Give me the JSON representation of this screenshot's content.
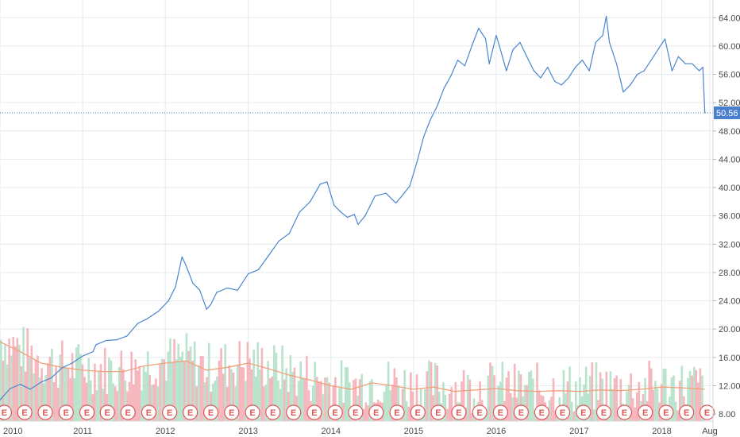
{
  "colors": {
    "price_line": "#4a86cf",
    "grid": "#e6e9ee",
    "axis_text": "#4a4a4a",
    "volume_up": "#b9e3cc",
    "volume_down": "#f6b6bd",
    "volume_ma": "#f0a27a",
    "event_stroke": "#e05555",
    "event_stroke_alt": "#4a86cf",
    "last_price_bg": "#4a7fcf"
  },
  "chart_data": {
    "type": "line",
    "title": "",
    "xlabel": "",
    "ylabel": "",
    "ylim": [
      7.0,
      66.5
    ],
    "y_ticks": [
      "8.00",
      "12.00",
      "16.00",
      "20.00",
      "24.00",
      "28.00",
      "32.00",
      "36.00",
      "40.00",
      "44.00",
      "48.00",
      "52.00",
      "56.00",
      "60.00",
      "64.00"
    ],
    "x_ticks": [
      {
        "date": "2010-01-01",
        "label": "2010"
      },
      {
        "date": "2011-01-01",
        "label": "2011"
      },
      {
        "date": "2012-01-01",
        "label": "2012"
      },
      {
        "date": "2013-01-01",
        "label": "2013"
      },
      {
        "date": "2014-01-01",
        "label": "2014"
      },
      {
        "date": "2015-01-01",
        "label": "2015"
      },
      {
        "date": "2016-01-01",
        "label": "2016"
      },
      {
        "date": "2017-01-01",
        "label": "2017"
      },
      {
        "date": "2018-01-01",
        "label": "2018"
      },
      {
        "date": "2018-08-01",
        "label": "Aug"
      }
    ],
    "x_domain": [
      "2010-01-01",
      "2018-08-15"
    ],
    "last_price": "50.56",
    "series": [
      {
        "points": [
          [
            "2010-01-01",
            10.0
          ],
          [
            "2010-02-15",
            11.6
          ],
          [
            "2010-04-01",
            12.2
          ],
          [
            "2010-05-15",
            11.5
          ],
          [
            "2010-07-01",
            12.5
          ],
          [
            "2010-08-15",
            13.1
          ],
          [
            "2010-10-01",
            14.5
          ],
          [
            "2010-11-15",
            15.2
          ],
          [
            "2011-01-01",
            16.2
          ],
          [
            "2011-02-15",
            16.8
          ],
          [
            "2011-03-01",
            17.8
          ],
          [
            "2011-04-15",
            18.4
          ],
          [
            "2011-06-01",
            18.5
          ],
          [
            "2011-07-15",
            19.0
          ],
          [
            "2011-09-01",
            20.8
          ],
          [
            "2011-10-15",
            21.5
          ],
          [
            "2011-12-01",
            22.5
          ],
          [
            "2012-01-15",
            24.0
          ],
          [
            "2012-02-15",
            26.0
          ],
          [
            "2012-03-15",
            30.2
          ],
          [
            "2012-04-01",
            29.0
          ],
          [
            "2012-05-01",
            26.5
          ],
          [
            "2012-06-01",
            25.5
          ],
          [
            "2012-07-01",
            22.8
          ],
          [
            "2012-07-20",
            23.5
          ],
          [
            "2012-08-15",
            25.2
          ],
          [
            "2012-10-01",
            25.8
          ],
          [
            "2012-11-15",
            25.5
          ],
          [
            "2013-01-01",
            27.8
          ],
          [
            "2013-02-15",
            28.4
          ],
          [
            "2013-04-01",
            30.4
          ],
          [
            "2013-05-15",
            32.4
          ],
          [
            "2013-07-01",
            33.5
          ],
          [
            "2013-08-15",
            36.5
          ],
          [
            "2013-10-01",
            38.0
          ],
          [
            "2013-11-15",
            40.5
          ],
          [
            "2013-12-15",
            40.8
          ],
          [
            "2014-01-15",
            37.5
          ],
          [
            "2014-02-15",
            36.5
          ],
          [
            "2014-03-15",
            35.8
          ],
          [
            "2014-04-15",
            36.2
          ],
          [
            "2014-05-01",
            34.8
          ],
          [
            "2014-06-01",
            36.0
          ],
          [
            "2014-07-15",
            38.8
          ],
          [
            "2014-09-01",
            39.2
          ],
          [
            "2014-10-15",
            37.8
          ],
          [
            "2014-11-15",
            39.0
          ],
          [
            "2014-12-15",
            40.2
          ],
          [
            "2015-01-15",
            43.5
          ],
          [
            "2015-02-15",
            47.2
          ],
          [
            "2015-03-15",
            49.5
          ],
          [
            "2015-04-15",
            51.5
          ],
          [
            "2015-05-15",
            54.0
          ],
          [
            "2015-06-15",
            55.8
          ],
          [
            "2015-07-15",
            58.0
          ],
          [
            "2015-08-15",
            57.2
          ],
          [
            "2015-09-15",
            60.0
          ],
          [
            "2015-10-15",
            62.5
          ],
          [
            "2015-11-15",
            61.0
          ],
          [
            "2015-12-01",
            57.5
          ],
          [
            "2016-01-01",
            61.5
          ],
          [
            "2016-01-15",
            60.0
          ],
          [
            "2016-02-15",
            56.5
          ],
          [
            "2016-03-15",
            59.5
          ],
          [
            "2016-04-15",
            60.5
          ],
          [
            "2016-05-15",
            58.5
          ],
          [
            "2016-06-15",
            56.5
          ],
          [
            "2016-07-15",
            55.5
          ],
          [
            "2016-08-15",
            57.0
          ],
          [
            "2016-09-15",
            55.0
          ],
          [
            "2016-10-15",
            54.5
          ],
          [
            "2016-11-15",
            55.5
          ],
          [
            "2016-12-15",
            57.0
          ],
          [
            "2017-01-15",
            58.0
          ],
          [
            "2017-02-15",
            56.5
          ],
          [
            "2017-03-15",
            60.5
          ],
          [
            "2017-04-15",
            61.5
          ],
          [
            "2017-05-01",
            64.2
          ],
          [
            "2017-05-15",
            60.5
          ],
          [
            "2017-06-15",
            57.5
          ],
          [
            "2017-07-15",
            53.5
          ],
          [
            "2017-08-15",
            54.5
          ],
          [
            "2017-09-15",
            56.0
          ],
          [
            "2017-10-15",
            56.5
          ],
          [
            "2017-11-15",
            58.0
          ],
          [
            "2017-12-15",
            59.5
          ],
          [
            "2018-01-15",
            61.0
          ],
          [
            "2018-02-15",
            56.5
          ],
          [
            "2018-03-15",
            58.5
          ],
          [
            "2018-04-15",
            57.5
          ],
          [
            "2018-05-15",
            57.5
          ],
          [
            "2018-06-15",
            56.5
          ],
          [
            "2018-07-01",
            57.0
          ],
          [
            "2018-07-10",
            50.56
          ]
        ]
      }
    ],
    "volume": {
      "axis_label_coverage": "bars share price axis region below ~20.00",
      "moving_average": [
        [
          "2010-01-01",
          18.2
        ],
        [
          "2010-04-01",
          16.8
        ],
        [
          "2010-07-01",
          15.2
        ],
        [
          "2010-10-01",
          14.6
        ],
        [
          "2011-01-01",
          14.2
        ],
        [
          "2011-04-01",
          14.0
        ],
        [
          "2011-07-01",
          14.0
        ],
        [
          "2011-10-01",
          14.8
        ],
        [
          "2012-01-01",
          15.2
        ],
        [
          "2012-04-01",
          15.5
        ],
        [
          "2012-07-01",
          14.2
        ],
        [
          "2012-10-01",
          14.6
        ],
        [
          "2013-01-01",
          15.2
        ],
        [
          "2013-04-01",
          14.4
        ],
        [
          "2013-07-01",
          13.5
        ],
        [
          "2013-10-01",
          12.8
        ],
        [
          "2014-01-01",
          12.0
        ],
        [
          "2014-04-01",
          11.5
        ],
        [
          "2014-07-01",
          12.4
        ],
        [
          "2014-10-01",
          12.0
        ],
        [
          "2015-01-01",
          11.5
        ],
        [
          "2015-04-01",
          11.8
        ],
        [
          "2015-07-01",
          11.2
        ],
        [
          "2015-10-01",
          11.4
        ],
        [
          "2016-01-01",
          11.6
        ],
        [
          "2016-04-01",
          11.3
        ],
        [
          "2016-07-01",
          11.2
        ],
        [
          "2016-10-01",
          11.3
        ],
        [
          "2017-01-01",
          11.2
        ],
        [
          "2017-04-01",
          11.4
        ],
        [
          "2017-07-01",
          11.3
        ],
        [
          "2017-10-01",
          11.5
        ],
        [
          "2018-01-01",
          11.8
        ],
        [
          "2018-04-01",
          11.7
        ],
        [
          "2018-07-10",
          11.5
        ]
      ]
    },
    "event_markers": {
      "letter": "E",
      "dates": [
        "2010-01-20",
        "2010-04-20",
        "2010-07-20",
        "2010-10-20",
        "2011-01-20",
        "2011-04-20",
        "2011-07-20",
        "2011-10-20",
        "2012-01-20",
        "2012-04-20",
        "2012-07-20",
        "2012-10-20",
        "2013-01-20",
        "2013-04-20",
        "2013-07-20",
        "2013-10-20",
        "2014-01-20",
        "2014-04-20",
        "2014-07-20",
        "2014-10-20",
        "2015-01-20",
        "2015-04-20",
        "2015-07-20",
        "2015-10-20",
        "2016-01-20",
        "2016-04-20",
        "2016-07-20",
        "2016-10-20",
        "2017-01-20",
        "2017-04-20",
        "2017-07-20",
        "2017-10-20",
        "2018-01-20",
        "2018-04-20",
        "2018-07-20"
      ]
    }
  }
}
